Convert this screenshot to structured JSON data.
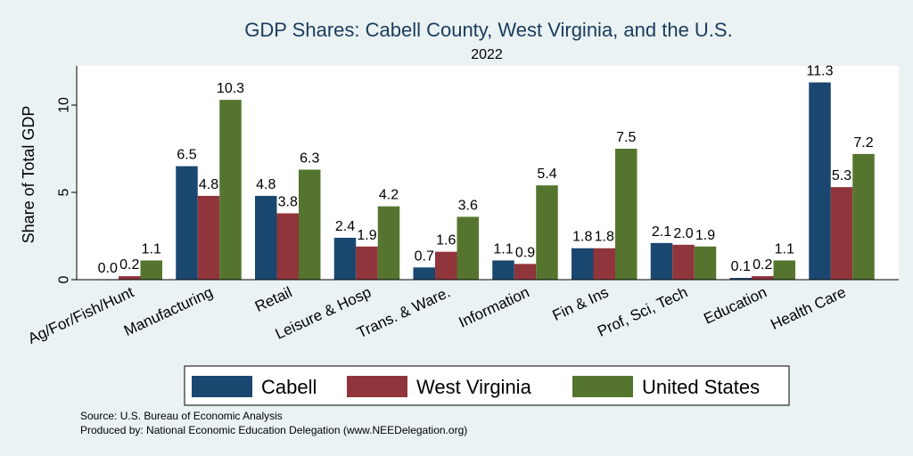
{
  "chart_data": {
    "type": "bar",
    "title": "GDP Shares: Cabell County, West Virginia, and the U.S.",
    "subtitle": "2022",
    "xlabel": "",
    "ylabel": "Share of Total GDP",
    "ylim": [
      0,
      12
    ],
    "yticks": [
      0,
      5,
      10
    ],
    "grid": false,
    "legend_position": "bottom",
    "categories": [
      "Ag/For/Fish/Hunt",
      "Manufacturing",
      "Retail",
      "Leisure & Hosp",
      "Trans. & Ware.",
      "Information",
      "Fin & Ins",
      "Prof, Sci, Tech",
      "Education",
      "Health Care"
    ],
    "series": [
      {
        "name": "Cabell",
        "color": "#1a476f",
        "values": [
          0.0,
          6.5,
          4.8,
          2.4,
          0.7,
          1.1,
          1.8,
          2.1,
          0.1,
          11.3
        ]
      },
      {
        "name": "West Virginia",
        "color": "#90353b",
        "values": [
          0.2,
          4.8,
          3.8,
          1.9,
          1.6,
          0.9,
          1.8,
          2.0,
          0.2,
          5.3
        ]
      },
      {
        "name": "United States",
        "color": "#55752f",
        "values": [
          1.1,
          10.3,
          6.3,
          4.2,
          3.6,
          5.4,
          7.5,
          1.9,
          1.1,
          7.2
        ]
      }
    ]
  },
  "notes": {
    "source": "Source: U.S. Bureau of Economic Analysis",
    "produced_by": "Produced by: National Economic Education Delegation (www.NEEDelegation.org)"
  }
}
